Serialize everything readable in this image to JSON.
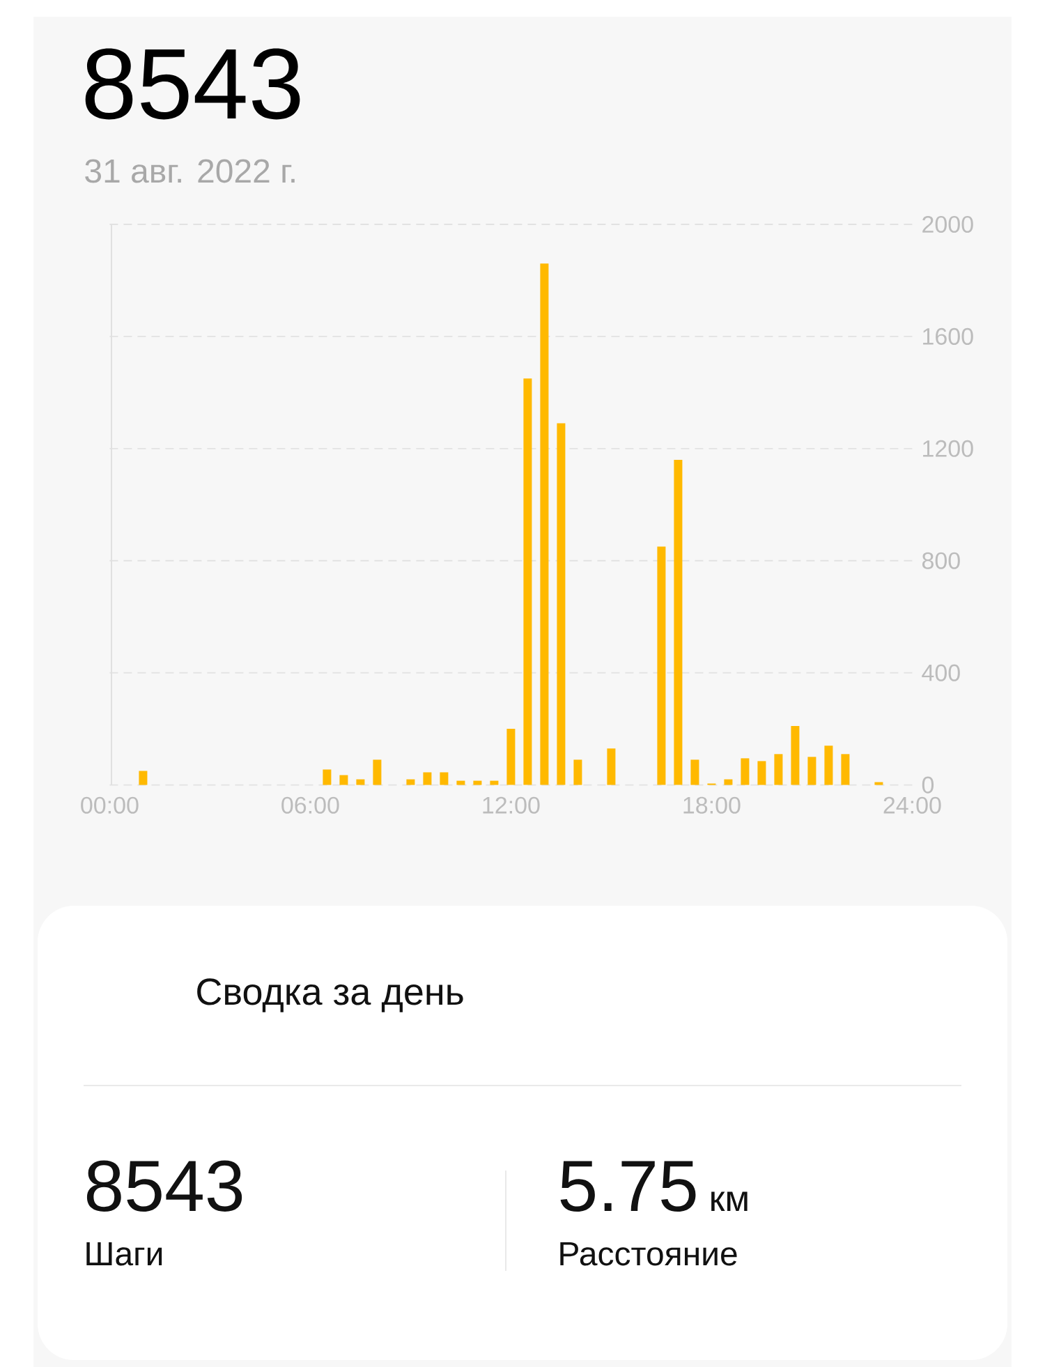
{
  "chart_data": {
    "type": "bar",
    "title": "8543",
    "subtitle": "31 авг. 2022 г.",
    "x": [
      1,
      6.5,
      7,
      7.5,
      8,
      9,
      9.5,
      10,
      10.5,
      11,
      11.5,
      12,
      12.5,
      13,
      13.5,
      14,
      15,
      16.5,
      17,
      17.5,
      18,
      18.5,
      19,
      19.5,
      20,
      20.5,
      21,
      21.5,
      22,
      23
    ],
    "values": [
      50,
      55,
      35,
      20,
      90,
      20,
      45,
      45,
      15,
      15,
      15,
      200,
      1450,
      1860,
      1290,
      90,
      130,
      850,
      1160,
      90,
      5,
      20,
      95,
      85,
      110,
      210,
      100,
      140,
      110,
      10
    ],
    "color": "#ffb900",
    "xlim": [
      0,
      24
    ],
    "xticks": [
      {
        "value": 0,
        "label": "00:00"
      },
      {
        "value": 6,
        "label": "06:00"
      },
      {
        "value": 12,
        "label": "12:00"
      },
      {
        "value": 18,
        "label": "18:00"
      },
      {
        "value": 24,
        "label": "24:00"
      }
    ],
    "ylim": [
      0,
      2000
    ],
    "yticks": [
      0,
      400,
      800,
      1200,
      1600,
      2000
    ],
    "grid": "y",
    "annotations": [
      "Сводка за день",
      "8543",
      "Шаги",
      "5.75",
      "км",
      "Расстояние"
    ]
  }
}
